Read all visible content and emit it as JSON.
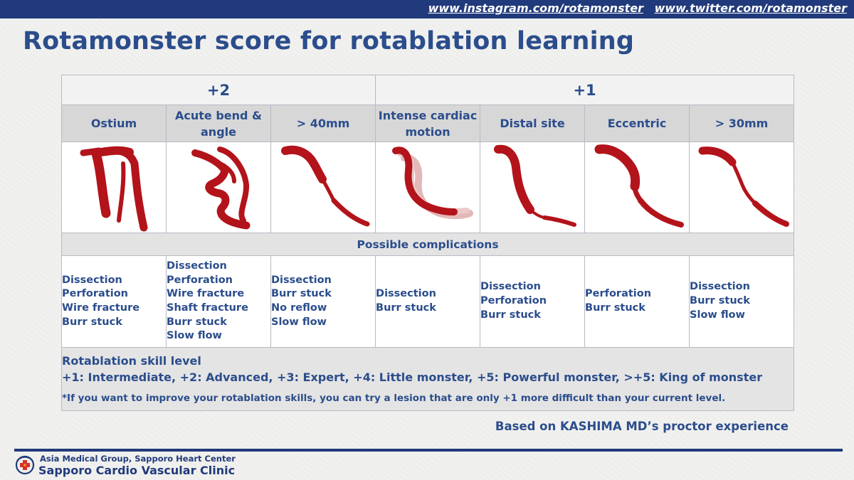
{
  "social": {
    "instagram": "www.instagram.com/rotamonster",
    "twitter": "www.twitter.com/rotamonster"
  },
  "title": "Rotamonster score for rotablation learning",
  "score_groups": [
    "+2",
    "+1"
  ],
  "categories": [
    {
      "label": "Ostium",
      "icon": "ostium-lesion-icon"
    },
    {
      "label": "Acute bend & angle",
      "icon": "acute-bend-lesion-icon"
    },
    {
      "label": "> 40mm",
      "icon": "long-lesion-40mm-icon"
    },
    {
      "label": "Intense cardiac motion",
      "icon": "cardiac-motion-lesion-icon"
    },
    {
      "label": "Distal site",
      "icon": "distal-lesion-icon"
    },
    {
      "label": "Eccentric",
      "icon": "eccentric-lesion-icon"
    },
    {
      "label": "> 30mm",
      "icon": "long-lesion-30mm-icon"
    }
  ],
  "complications_header": "Possible complications",
  "complications": [
    [
      "Dissection",
      "Perforation",
      "Wire fracture",
      "Burr stuck"
    ],
    [
      "Dissection",
      "Perforation",
      "Wire fracture",
      "Shaft fracture",
      "Burr stuck",
      "Slow flow"
    ],
    [
      "Dissection",
      "Burr stuck",
      "No reflow",
      "Slow flow"
    ],
    [
      "Dissection",
      "Burr stuck"
    ],
    [
      "Dissection",
      "Perforation",
      "Burr stuck"
    ],
    [
      "Perforation",
      "Burr stuck"
    ],
    [
      "Dissection",
      "Burr stuck",
      "Slow flow"
    ]
  ],
  "skill": {
    "title": "Rotablation skill level",
    "levels": "+1: Intermediate, +2: Advanced, +3: Expert, +4: Little monster, +5: Powerful monster, >+5: King of monster",
    "note": "*If you want to improve your rotablation skills, you can try a lesion that are only +1 more difficult than your current level."
  },
  "based_on": "Based on KASHIMA MD’s proctor experience",
  "footer": {
    "org": "Asia Medical Group, Sapporo Heart Center",
    "clinic": "Sapporo Cardio Vascular Clinic"
  },
  "colors": {
    "vessel": "#b3131a",
    "vessel_ghost": "#e3b8b8",
    "heading": "#2b4d8c",
    "bar": "#213a7b"
  }
}
